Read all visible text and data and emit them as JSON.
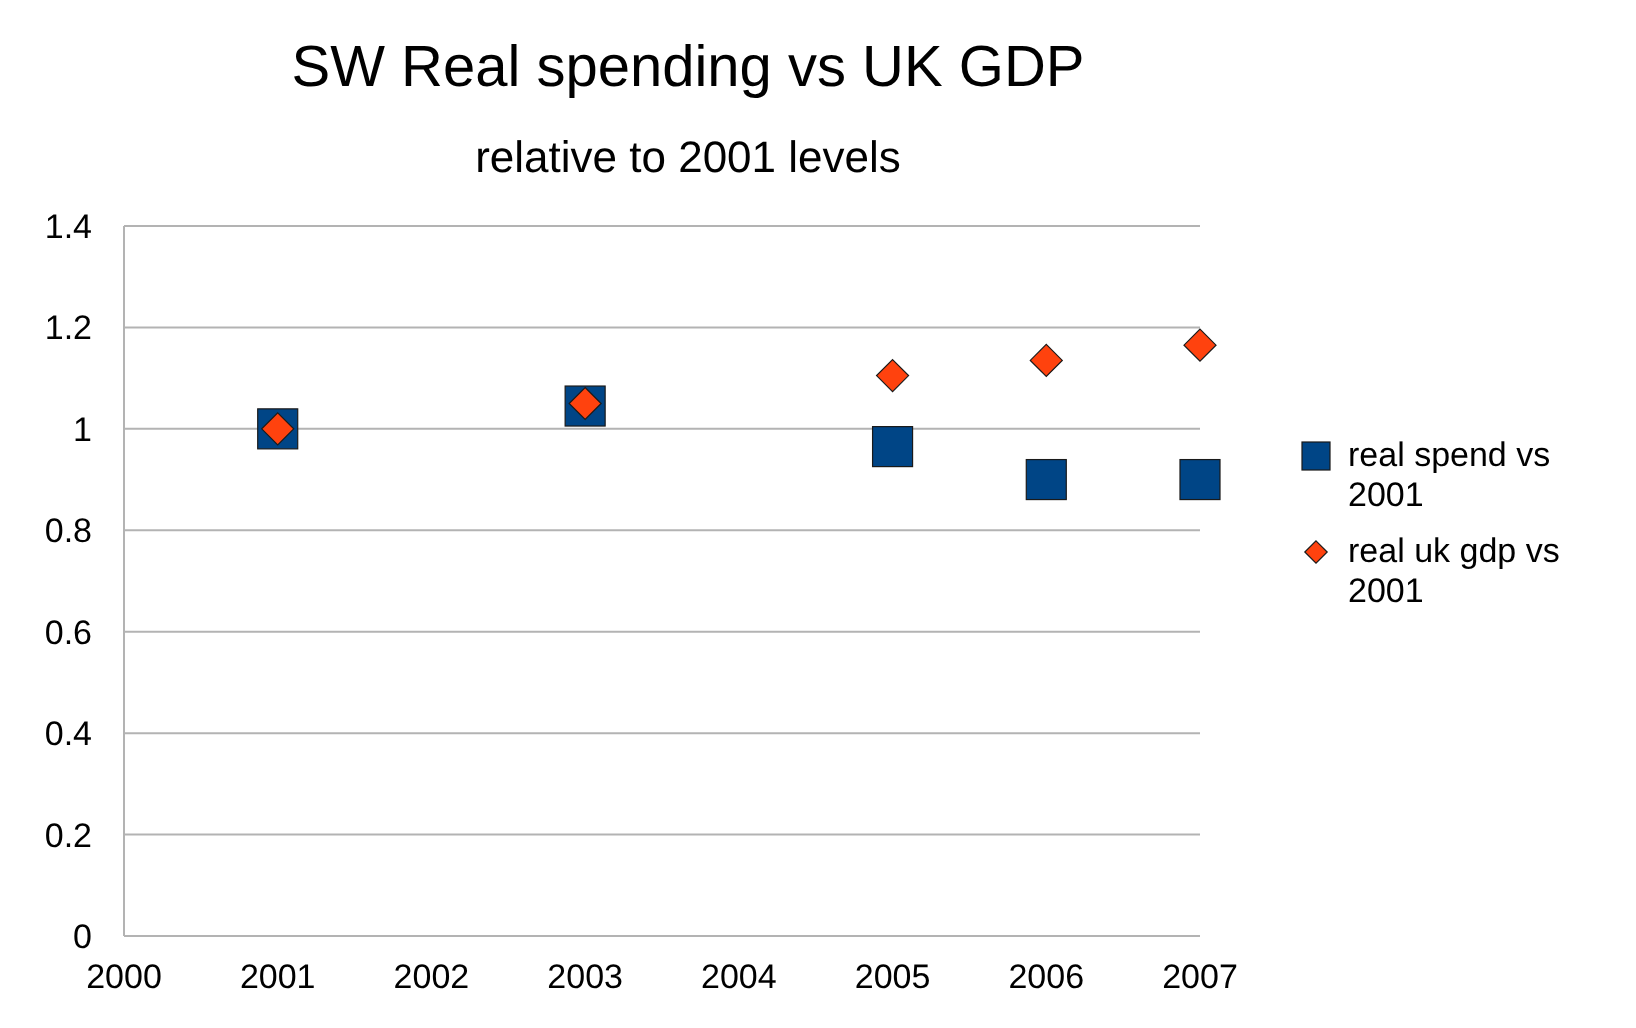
{
  "chart_data": {
    "type": "scatter",
    "title": "SW Real spending vs UK GDP",
    "subtitle": "relative to 2001 levels",
    "x": [
      2001,
      2003,
      2005,
      2006,
      2007
    ],
    "series": [
      {
        "name": "real spend vs 2001",
        "color": "#004586",
        "marker": "square",
        "values": [
          1.0,
          1.045,
          0.965,
          0.9,
          0.9
        ]
      },
      {
        "name": "real uk gdp vs 2001",
        "color": "#ff420e",
        "marker": "diamond",
        "values": [
          1.0,
          1.05,
          1.105,
          1.135,
          1.165
        ]
      }
    ],
    "xlim": [
      2000,
      2007
    ],
    "xticks": [
      2000,
      2001,
      2002,
      2003,
      2004,
      2005,
      2006,
      2007
    ],
    "ylim": [
      0,
      1.4
    ],
    "yticks": [
      0,
      0.2,
      0.4,
      0.6,
      0.8,
      1,
      1.2,
      1.4
    ],
    "grid": "y",
    "legend": "right"
  }
}
